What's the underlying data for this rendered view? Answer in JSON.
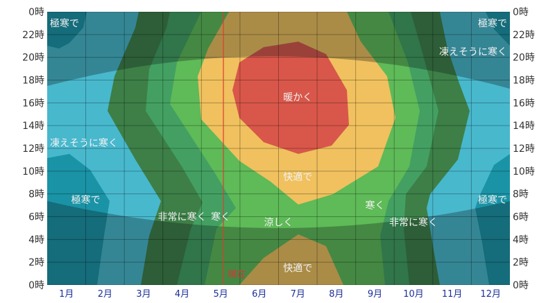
{
  "chart_data": {
    "type": "heatmap",
    "title": "",
    "xlabel": "",
    "ylabel": "",
    "categories": [
      "1月",
      "2月",
      "3月",
      "4月",
      "5月",
      "6月",
      "7月",
      "8月",
      "9月",
      "10月",
      "11月",
      "12月"
    ],
    "y_ticks": [
      "0時",
      "2時",
      "4時",
      "6時",
      "8時",
      "10時",
      "12時",
      "14時",
      "16時",
      "18時",
      "20時",
      "22時",
      "0時"
    ],
    "ylim": [
      0,
      24
    ],
    "grid": true,
    "current_marker": {
      "label": "現在",
      "month_position": 5.2,
      "color": "#e03c2e"
    },
    "zones": [
      {
        "label": "極寒で",
        "color_day": "#1a93a6",
        "color_night": "#156a78"
      },
      {
        "label": "凍えそうに寒く",
        "color_day": "#48b8cd",
        "color_night": "#3a8598"
      },
      {
        "label": "非常に寒く",
        "color_day": "#3d7f47",
        "color_night": "#2c5f38"
      },
      {
        "label": "寒く",
        "color_day": "#43a062",
        "color_night": "#347447"
      },
      {
        "label": "涼しく",
        "color_day": "#5fba58",
        "color_night": "#468a3f"
      },
      {
        "label": "快適で",
        "color_day": "#f0c15e",
        "color_night": "#a98a45"
      },
      {
        "label": "暖かく",
        "color_day": "#d8574a",
        "color_night": "#a3453a"
      }
    ],
    "annotations": [
      {
        "text": "極寒で",
        "month": 1,
        "hour": 23
      },
      {
        "text": "極寒で",
        "month": 12,
        "hour": 23
      },
      {
        "text": "凍えそうに寒く",
        "month": 12,
        "hour": 20.5
      },
      {
        "text": "暖かく",
        "month": 7,
        "hour": 16.5
      },
      {
        "text": "凍えそうに寒く",
        "month": 1,
        "hour": 12.5
      },
      {
        "text": "快適で",
        "month": 7,
        "hour": 9.5
      },
      {
        "text": "極寒で",
        "month": 1.5,
        "hour": 7.5
      },
      {
        "text": "極寒で",
        "month": 12,
        "hour": 7.5
      },
      {
        "text": "非常に寒く",
        "month": 4,
        "hour": 6
      },
      {
        "text": "寒く",
        "month": 5,
        "hour": 6
      },
      {
        "text": "涼しく",
        "month": 6.5,
        "hour": 5.5
      },
      {
        "text": "寒く",
        "month": 9,
        "hour": 7
      },
      {
        "text": "非常に寒く",
        "month": 10,
        "hour": 5.5
      },
      {
        "text": "快適で",
        "month": 7,
        "hour": 1.5
      }
    ],
    "night_overlay": {
      "sunset_hour_range": [
        18,
        20.5
      ],
      "sunrise_hour_range": [
        5,
        7.5
      ]
    }
  }
}
